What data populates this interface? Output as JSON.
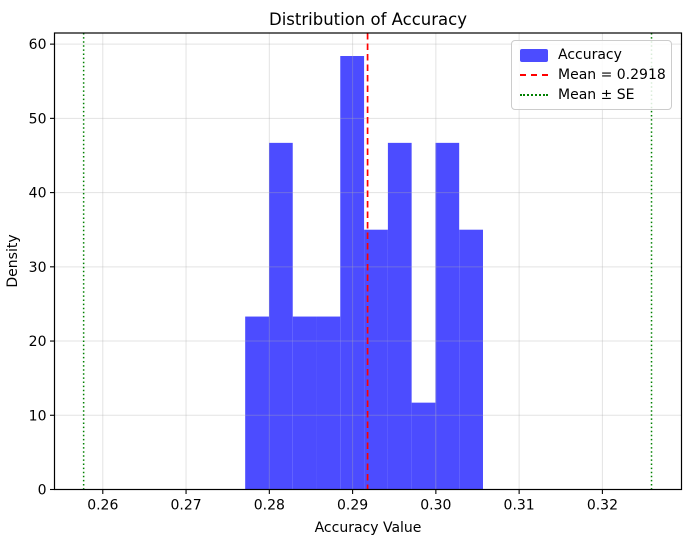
{
  "chart_data": {
    "type": "bar",
    "variant": "histogram",
    "title": "Distribution of Accuracy",
    "xlabel": "Accuracy Value",
    "ylabel": "Density",
    "series_name": "Accuracy",
    "bin_edges": [
      0.2771,
      0.27996,
      0.28281,
      0.28567,
      0.28852,
      0.29138,
      0.29424,
      0.29709,
      0.29995,
      0.3028,
      0.30566
    ],
    "densities": [
      23.3,
      46.7,
      23.3,
      23.3,
      58.4,
      35.0,
      46.7,
      11.7,
      46.7,
      35.0
    ],
    "mean_line": {
      "x": 0.2918,
      "label": "Mean = 0.2918",
      "linestyle": "dashed",
      "color": "#ff0000"
    },
    "se_lines": {
      "x": [
        0.2577,
        0.3259
      ],
      "label": "Mean ± SE",
      "linestyle": "dotted",
      "color": "#008000"
    },
    "xlim": [
      0.2542,
      0.3295
    ],
    "ylim": [
      0,
      61.5
    ],
    "x_ticks": [
      0.26,
      0.27,
      0.28,
      0.29,
      0.3,
      0.31,
      0.32
    ],
    "x_tick_labels": [
      "0.26",
      "0.27",
      "0.28",
      "0.29",
      "0.30",
      "0.31",
      "0.32"
    ],
    "y_ticks": [
      0,
      10,
      20,
      30,
      40,
      50,
      60
    ],
    "y_tick_labels": [
      "0",
      "10",
      "20",
      "30",
      "40",
      "50",
      "60"
    ],
    "grid": true,
    "legend_position": "upper right"
  },
  "colors": {
    "bar": "#4c4cff",
    "mean_line": "#ff0000",
    "se_line": "#008000",
    "grid": "#b0b0b0",
    "axes": "#000000",
    "text": "#000000",
    "legend_border": "#cccccc",
    "background": "#ffffff"
  },
  "legend": {
    "items": [
      {
        "label": "Accuracy",
        "swatch": "patch",
        "color": "#4c4cff"
      },
      {
        "label": "Mean = 0.2918",
        "swatch": "dashed-line",
        "color": "#ff0000"
      },
      {
        "label": "Mean ± SE",
        "swatch": "dotted-line",
        "color": "#008000"
      }
    ]
  }
}
